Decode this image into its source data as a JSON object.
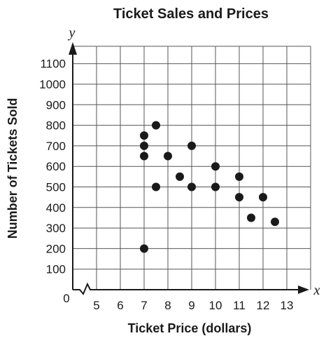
{
  "chart_data": {
    "type": "scatter",
    "title": "Ticket Sales and Prices",
    "xlabel": "Ticket Price (dollars)",
    "ylabel": "Number of Tickets Sold",
    "x_axis_letter": "x",
    "y_axis_letter": "y",
    "origin_label": "0",
    "x_axis_break": true,
    "xlim": [
      4,
      14
    ],
    "ylim": [
      0,
      1150
    ],
    "x_ticks": [
      5,
      6,
      7,
      8,
      9,
      10,
      11,
      12,
      13
    ],
    "y_ticks": [
      100,
      200,
      300,
      400,
      500,
      600,
      700,
      800,
      900,
      1000,
      1100
    ],
    "x_tick_labels": [
      "5",
      "6",
      "7",
      "8",
      "9",
      "10",
      "11",
      "12",
      "13"
    ],
    "y_tick_labels": [
      "100",
      "200",
      "300",
      "400",
      "500",
      "600",
      "700",
      "800",
      "900",
      "1000",
      "1100"
    ],
    "grid": true,
    "points": [
      {
        "x": 7,
        "y": 750
      },
      {
        "x": 7,
        "y": 700
      },
      {
        "x": 7,
        "y": 650
      },
      {
        "x": 7,
        "y": 200
      },
      {
        "x": 7.5,
        "y": 800
      },
      {
        "x": 7.5,
        "y": 500
      },
      {
        "x": 8,
        "y": 650
      },
      {
        "x": 8.5,
        "y": 550
      },
      {
        "x": 9,
        "y": 700
      },
      {
        "x": 9,
        "y": 500
      },
      {
        "x": 10,
        "y": 600
      },
      {
        "x": 10,
        "y": 500
      },
      {
        "x": 11,
        "y": 550
      },
      {
        "x": 11,
        "y": 450
      },
      {
        "x": 11.5,
        "y": 350
      },
      {
        "x": 12,
        "y": 450
      },
      {
        "x": 12.5,
        "y": 330
      }
    ],
    "colors": {
      "axis": "#1a1a1a",
      "grid": "#555555",
      "point": "#1a1a1a"
    }
  }
}
